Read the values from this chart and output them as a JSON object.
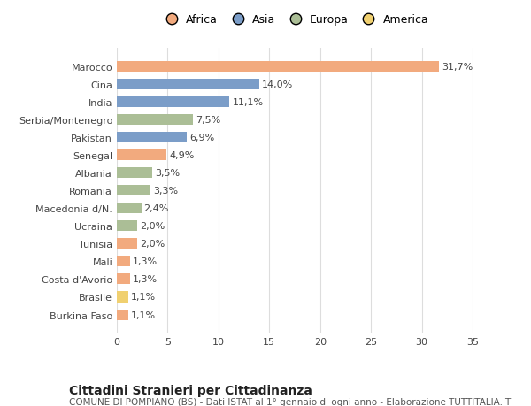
{
  "countries": [
    "Burkina Faso",
    "Brasile",
    "Costa d'Avorio",
    "Mali",
    "Tunisia",
    "Ucraina",
    "Macedonia d/N.",
    "Romania",
    "Albania",
    "Senegal",
    "Pakistan",
    "Serbia/Montenegro",
    "India",
    "Cina",
    "Marocco"
  ],
  "values": [
    1.1,
    1.1,
    1.3,
    1.3,
    2.0,
    2.0,
    2.4,
    3.3,
    3.5,
    4.9,
    6.9,
    7.5,
    11.1,
    14.0,
    31.7
  ],
  "labels": [
    "1,1%",
    "1,1%",
    "1,3%",
    "1,3%",
    "2,0%",
    "2,0%",
    "2,4%",
    "3,3%",
    "3,5%",
    "4,9%",
    "6,9%",
    "7,5%",
    "11,1%",
    "14,0%",
    "31,7%"
  ],
  "continents": [
    "Africa",
    "America",
    "Africa",
    "Africa",
    "Africa",
    "Europa",
    "Europa",
    "Europa",
    "Europa",
    "Africa",
    "Asia",
    "Europa",
    "Asia",
    "Asia",
    "Africa"
  ],
  "continent_colors": {
    "Africa": "#F2AA7E",
    "Asia": "#7B9DC8",
    "Europa": "#ABBE96",
    "America": "#F0D070"
  },
  "legend_order": [
    "Africa",
    "Asia",
    "Europa",
    "America"
  ],
  "title": "Cittadini Stranieri per Cittadinanza",
  "subtitle": "COMUNE DI POMPIANO (BS) - Dati ISTAT al 1° gennaio di ogni anno - Elaborazione TUTTITALIA.IT",
  "xlim": [
    0,
    35
  ],
  "xticks": [
    0,
    5,
    10,
    15,
    20,
    25,
    30,
    35
  ],
  "bg_color": "#ffffff",
  "grid_color": "#dddddd",
  "bar_height": 0.6,
  "title_fontsize": 10,
  "subtitle_fontsize": 7.5,
  "label_fontsize": 8,
  "tick_fontsize": 8,
  "legend_fontsize": 9
}
